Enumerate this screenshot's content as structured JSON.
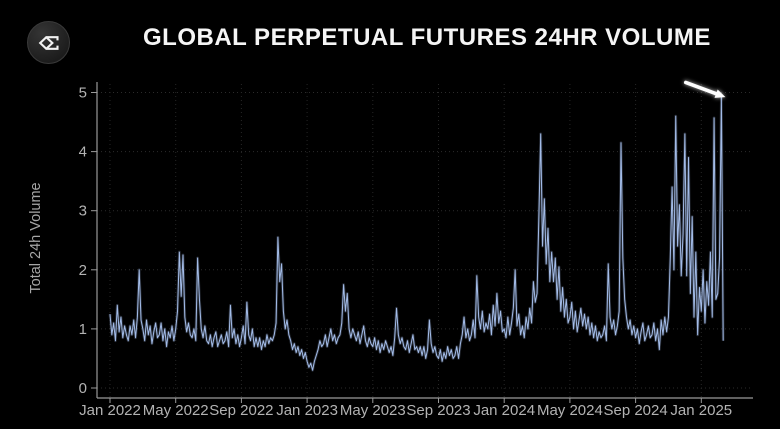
{
  "header": {
    "title": "GLOBAL PERPETUAL FUTURES 24HR VOLUME",
    "logo_icon": "sigma-diamond-logo"
  },
  "colors": {
    "background": "#000000",
    "line": "#a3bce8",
    "axis_spine": "#9a9a9a",
    "grid_horizontal": "#2b2b2b",
    "grid_vertical": "#262626",
    "tick_text": "#b3b3b3",
    "axis_title_text": "#a6a6a6",
    "title_text": "#f5f5f5",
    "annotation": "#ffffff"
  },
  "chart_data": {
    "type": "line",
    "title": "GLOBAL PERPETUAL FUTURES 24HR VOLUME",
    "xlabel": "",
    "ylabel": "Total 24h Volume",
    "ylim": [
      0,
      5.18
    ],
    "yticks": [
      0,
      1,
      2,
      3,
      4,
      5
    ],
    "xticks": [
      "Jan 2022",
      "May 2022",
      "Sep 2022",
      "Jan 2023",
      "May 2023",
      "Sep 2023",
      "Jan 2024",
      "May 2024",
      "Sep 2024",
      "Jan 2025"
    ],
    "xtick_interval_months": 4,
    "x_axis_end_month": 39.15,
    "grid": true,
    "legend": false,
    "x_start_label": "Jan 2022",
    "x_end_label": "Feb 2025",
    "points_per_month": 9,
    "annotation": {
      "type": "arrow",
      "from": {
        "month": 35.05,
        "value": 5.17
      },
      "to": {
        "month": 36.9,
        "value": 4.98
      },
      "points_to": "peak ~4.9 in early Feb 2025"
    },
    "values": [
      1.25,
      0.9,
      1.1,
      0.8,
      1.4,
      0.95,
      1.2,
      0.85,
      1.05,
      0.9,
      0.8,
      1.05,
      0.9,
      1.15,
      0.85,
      1.2,
      2.0,
      1.15,
      1.0,
      0.8,
      1.15,
      0.9,
      1.05,
      0.75,
      0.95,
      1.1,
      0.85,
      0.9,
      1.1,
      0.8,
      1.0,
      0.7,
      0.95,
      0.85,
      1.05,
      0.8,
      1.0,
      1.3,
      2.3,
      1.55,
      2.25,
      1.2,
      0.95,
      1.1,
      0.9,
      0.85,
      1.0,
      0.8,
      2.2,
      1.5,
      1.0,
      0.85,
      1.05,
      0.8,
      0.75,
      0.9,
      0.7,
      0.85,
      0.95,
      0.7,
      0.8,
      0.9,
      0.75,
      0.8,
      0.95,
      0.7,
      1.4,
      0.85,
      1.0,
      0.75,
      0.9,
      0.7,
      0.85,
      1.05,
      0.75,
      1.45,
      0.9,
      0.8,
      1.0,
      0.7,
      0.85,
      0.7,
      0.85,
      0.65,
      0.8,
      0.7,
      0.9,
      0.75,
      0.85,
      0.8,
      0.9,
      1.1,
      2.55,
      1.8,
      2.1,
      1.3,
      1.0,
      1.15,
      0.9,
      0.8,
      0.65,
      0.75,
      0.6,
      0.7,
      0.55,
      0.65,
      0.5,
      0.6,
      0.45,
      0.35,
      0.42,
      0.3,
      0.45,
      0.55,
      0.65,
      0.8,
      0.7,
      0.75,
      0.9,
      0.7,
      0.85,
      1.0,
      0.8,
      0.9,
      0.75,
      0.85,
      0.9,
      1.1,
      1.75,
      1.3,
      1.6,
      1.0,
      0.85,
      1.0,
      0.9,
      0.8,
      0.95,
      0.75,
      0.9,
      1.05,
      0.8,
      0.7,
      0.85,
      0.75,
      0.7,
      0.85,
      0.65,
      0.8,
      0.6,
      0.75,
      0.65,
      0.8,
      0.7,
      0.6,
      0.7,
      0.55,
      0.85,
      1.35,
      0.9,
      0.75,
      0.85,
      0.7,
      0.65,
      0.8,
      0.6,
      0.75,
      0.9,
      0.65,
      0.7,
      0.6,
      0.7,
      0.55,
      0.7,
      0.5,
      0.65,
      1.15,
      0.75,
      0.6,
      0.7,
      0.55,
      0.5,
      0.65,
      0.45,
      0.6,
      0.5,
      0.7,
      0.55,
      0.65,
      0.5,
      0.55,
      0.7,
      0.5,
      0.75,
      0.9,
      1.2,
      0.85,
      1.0,
      0.8,
      0.9,
      1.15,
      0.85,
      1.9,
      1.2,
      1.0,
      1.3,
      0.95,
      1.1,
      1.0,
      1.25,
      0.9,
      1.4,
      1.05,
      1.6,
      1.1,
      1.3,
      0.95,
      1.0,
      0.85,
      1.2,
      0.9,
      1.1,
      1.35,
      2.0,
      1.05,
      1.25,
      0.9,
      1.05,
      0.85,
      1.2,
      1.0,
      1.35,
      1.1,
      1.8,
      1.45,
      1.6,
      2.9,
      4.3,
      2.4,
      3.2,
      2.1,
      2.7,
      1.8,
      2.3,
      1.8,
      2.2,
      1.5,
      2.05,
      1.3,
      1.7,
      1.2,
      1.5,
      1.1,
      1.2,
      1.45,
      1.0,
      1.3,
      0.95,
      1.15,
      1.35,
      1.05,
      1.25,
      1.0,
      1.2,
      0.9,
      1.1,
      0.85,
      1.05,
      0.8,
      0.95,
      0.85,
      0.9,
      1.05,
      0.8,
      2.1,
      1.2,
      1.0,
      1.15,
      0.9,
      1.05,
      1.3,
      4.15,
      2.2,
      1.5,
      1.2,
      1.0,
      1.15,
      0.9,
      1.05,
      0.85,
      1.0,
      0.75,
      0.95,
      1.1,
      0.8,
      0.9,
      1.05,
      0.85,
      0.9,
      1.1,
      0.8,
      1.0,
      0.65,
      1.15,
      0.9,
      1.2,
      0.95,
      1.2,
      2.2,
      3.4,
      2.0,
      4.6,
      2.4,
      3.1,
      1.9,
      2.6,
      4.3,
      1.9,
      3.9,
      1.6,
      2.9,
      1.2,
      2.3,
      0.9,
      1.7,
      1.3,
      2.0,
      1.1,
      1.8,
      1.4,
      2.3,
      1.2,
      4.57,
      1.5,
      1.6,
      2.2,
      4.93,
      0.8
    ]
  }
}
